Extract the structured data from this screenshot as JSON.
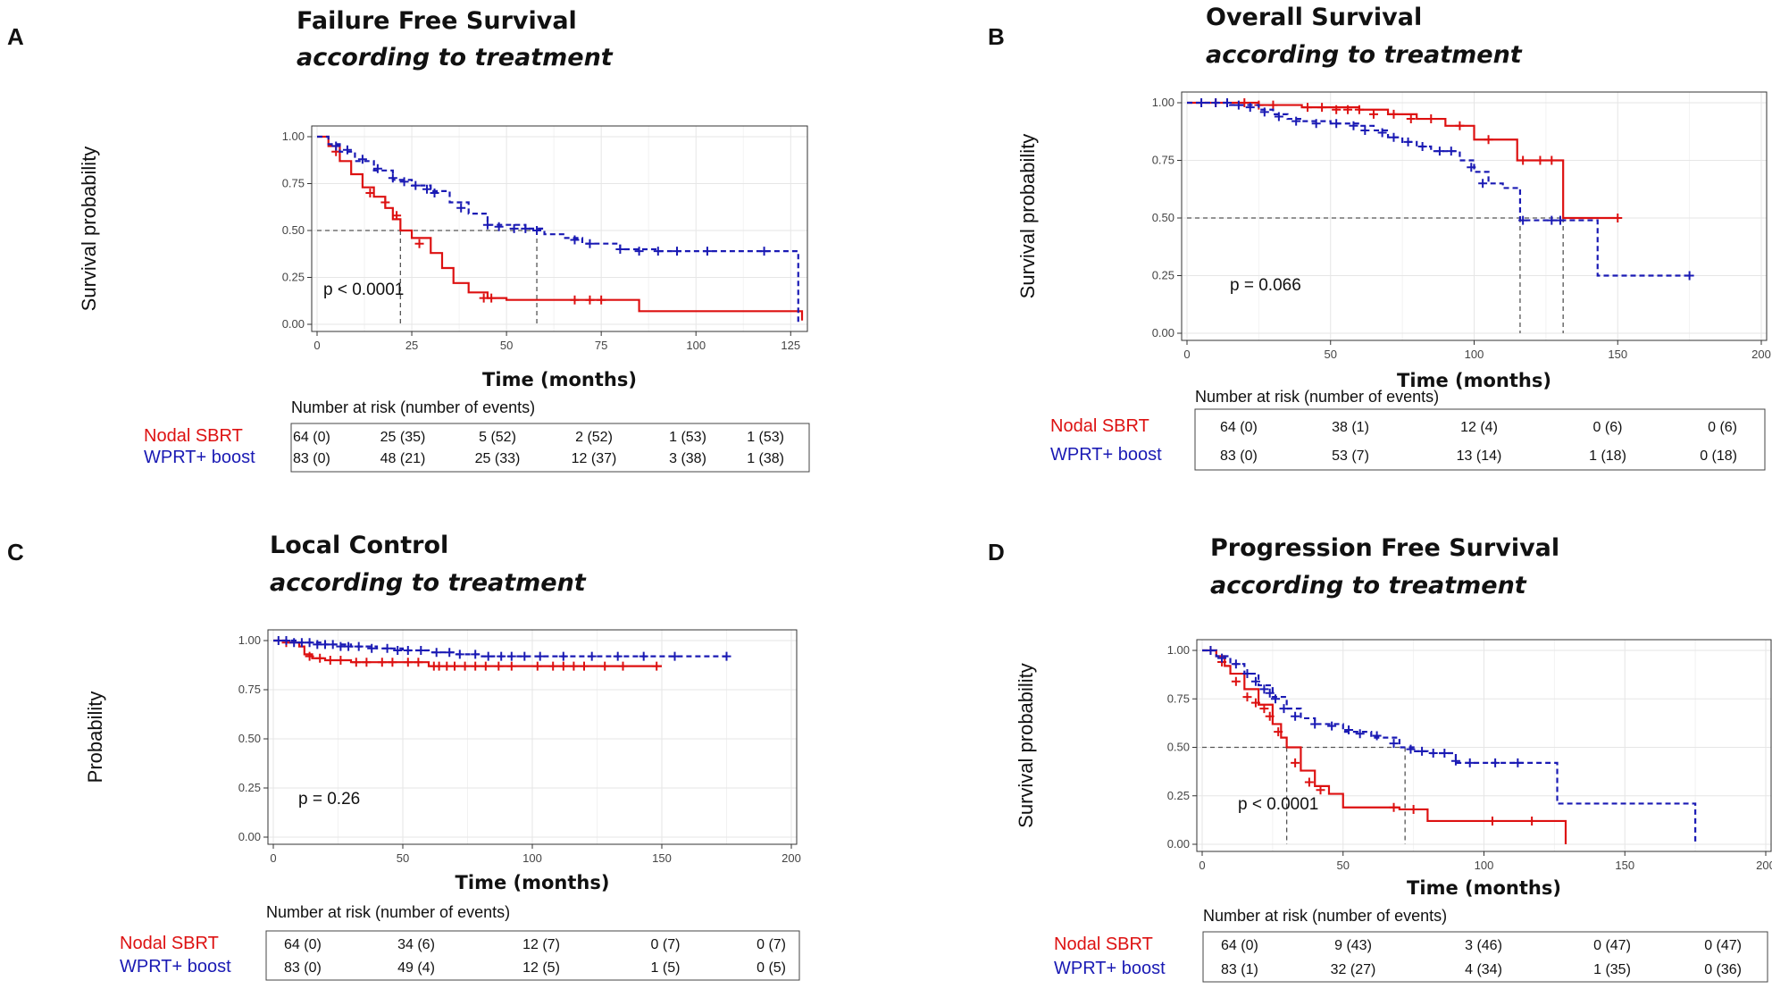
{
  "colors": {
    "nodal": "#dd1111",
    "wprt": "#1a1ab4",
    "grid": "#e6e6e6",
    "ref": "#555555"
  },
  "chart_data": [
    {
      "panel": "A",
      "type": "line",
      "title": "Failure  Free Survival",
      "subtitle": "according to treatment",
      "ylabel": "Survival probability",
      "xlabel": "Time (months)",
      "xlim": [
        0,
        128
      ],
      "ylim": [
        0,
        1
      ],
      "x_ticks": [
        0,
        25,
        50,
        75,
        100,
        125
      ],
      "y_ticks": [
        "0.00",
        "0.25",
        "0.50",
        "0.75",
        "1.00"
      ],
      "p_value": "p < 0.0001",
      "median_lines": [
        22,
        58
      ],
      "series": [
        {
          "name": "Nodal SBRT",
          "style": "solid",
          "x": [
            0,
            3,
            6,
            9,
            12,
            15,
            18,
            20,
            22,
            25,
            30,
            33,
            36,
            40,
            45,
            50,
            85,
            128
          ],
          "y": [
            1,
            0.95,
            0.87,
            0.8,
            0.73,
            0.68,
            0.62,
            0.56,
            0.5,
            0.46,
            0.38,
            0.3,
            0.22,
            0.17,
            0.14,
            0.13,
            0.07,
            0.02
          ],
          "censors_x": [
            5,
            14,
            18,
            21,
            27,
            44,
            46,
            68,
            72,
            75
          ],
          "censors_y": [
            0.92,
            0.7,
            0.65,
            0.58,
            0.43,
            0.14,
            0.14,
            0.13,
            0.13,
            0.13
          ]
        },
        {
          "name": "WPRT+ boost",
          "style": "dashed",
          "x": [
            0,
            3,
            6,
            10,
            15,
            20,
            25,
            30,
            35,
            40,
            45,
            55,
            60,
            65,
            70,
            80,
            90,
            100,
            110,
            120,
            126,
            127
          ],
          "y": [
            1,
            0.96,
            0.92,
            0.87,
            0.82,
            0.77,
            0.74,
            0.71,
            0.65,
            0.59,
            0.53,
            0.51,
            0.48,
            0.46,
            0.43,
            0.4,
            0.39,
            0.39,
            0.39,
            0.39,
            0.39,
            0.0
          ],
          "censors_x": [
            5,
            8,
            12,
            16,
            20,
            23,
            26,
            29,
            31,
            38,
            45,
            48,
            52,
            55,
            58,
            68,
            72,
            80,
            85,
            90,
            95,
            103,
            118
          ],
          "censors_y": [
            0.95,
            0.93,
            0.88,
            0.83,
            0.78,
            0.76,
            0.74,
            0.72,
            0.7,
            0.62,
            0.53,
            0.52,
            0.51,
            0.51,
            0.5,
            0.45,
            0.43,
            0.4,
            0.39,
            0.39,
            0.39,
            0.39,
            0.39
          ]
        }
      ],
      "risk_table": {
        "header": "Number at risk (number of events)",
        "rows": [
          {
            "group": "Nodal SBRT",
            "cells": [
              "64 (0)",
              "25 (35)",
              "5 (52)",
              "2 (52)",
              "1 (53)",
              "1 (53)"
            ]
          },
          {
            "group": "WPRT+ boost",
            "cells": [
              "83 (0)",
              "48 (21)",
              "25 (33)",
              "12 (37)",
              "3 (38)",
              "1 (38)"
            ]
          }
        ]
      }
    },
    {
      "panel": "B",
      "type": "line",
      "title": "Overall Survival",
      "subtitle": "according to treatment",
      "ylabel": "Survival probability",
      "xlabel": "Time (months)",
      "xlim": [
        0,
        200
      ],
      "ylim": [
        0,
        1
      ],
      "x_ticks": [
        0,
        50,
        100,
        150,
        200
      ],
      "y_ticks": [
        "0.00",
        "0.25",
        "0.50",
        "0.75",
        "1.00"
      ],
      "p_value": "p = 0.066",
      "median_lines": [
        116,
        131
      ],
      "series": [
        {
          "name": "Nodal SBRT",
          "style": "solid",
          "x": [
            0,
            25,
            40,
            60,
            70,
            80,
            90,
            100,
            110,
            115,
            120,
            130,
            131,
            150
          ],
          "y": [
            1,
            0.99,
            0.98,
            0.97,
            0.95,
            0.93,
            0.9,
            0.84,
            0.84,
            0.75,
            0.75,
            0.75,
            0.5,
            0.5
          ],
          "censors_x": [
            10,
            20,
            25,
            30,
            42,
            47,
            52,
            56,
            60,
            65,
            72,
            78,
            85,
            95,
            105,
            117,
            123,
            127,
            150
          ],
          "censors_y": [
            1,
            1,
            0.99,
            0.99,
            0.98,
            0.98,
            0.97,
            0.97,
            0.97,
            0.95,
            0.95,
            0.93,
            0.93,
            0.9,
            0.84,
            0.75,
            0.75,
            0.75,
            0.5
          ]
        },
        {
          "name": "WPRT+ boost",
          "style": "dashed",
          "x": [
            0,
            15,
            25,
            30,
            35,
            40,
            50,
            60,
            65,
            70,
            75,
            80,
            85,
            90,
            95,
            100,
            105,
            110,
            116,
            120,
            140,
            143,
            175
          ],
          "y": [
            1,
            0.99,
            0.97,
            0.95,
            0.93,
            0.92,
            0.91,
            0.9,
            0.88,
            0.85,
            0.83,
            0.81,
            0.79,
            0.79,
            0.75,
            0.7,
            0.65,
            0.63,
            0.49,
            0.49,
            0.49,
            0.25,
            0.25
          ],
          "censors_x": [
            5,
            10,
            14,
            18,
            22,
            27,
            32,
            38,
            45,
            52,
            58,
            62,
            68,
            72,
            77,
            82,
            88,
            92,
            99,
            103,
            117,
            127,
            130,
            175
          ],
          "censors_y": [
            1,
            1,
            1,
            0.99,
            0.98,
            0.96,
            0.94,
            0.92,
            0.91,
            0.91,
            0.9,
            0.88,
            0.87,
            0.85,
            0.83,
            0.81,
            0.79,
            0.79,
            0.72,
            0.65,
            0.49,
            0.49,
            0.49,
            0.25
          ]
        }
      ],
      "risk_table": {
        "header": "Number at risk (number of events)",
        "rows": [
          {
            "group": "Nodal SBRT",
            "cells": [
              "64 (0)",
              "38 (1)",
              "12 (4)",
              "0 (6)",
              "0 (6)"
            ]
          },
          {
            "group": "WPRT+ boost",
            "cells": [
              "83 (0)",
              "53 (7)",
              "13 (14)",
              "1 (18)",
              "0 (18)"
            ]
          }
        ]
      }
    },
    {
      "panel": "C",
      "type": "line",
      "title": "Local Control",
      "subtitle": "according to treatment",
      "ylabel": "Probability",
      "xlabel": "Time (months)",
      "xlim": [
        0,
        200
      ],
      "ylim": [
        0,
        1
      ],
      "x_ticks": [
        0,
        50,
        100,
        150,
        200
      ],
      "y_ticks": [
        "0.00",
        "0.25",
        "0.50",
        "0.75",
        "1.00"
      ],
      "p_value": "p = 0.26",
      "median_lines": [],
      "series": [
        {
          "name": "Nodal SBRT",
          "style": "solid",
          "x": [
            0,
            5,
            10,
            12,
            15,
            20,
            30,
            60,
            70,
            100,
            150
          ],
          "y": [
            1,
            0.99,
            0.97,
            0.93,
            0.91,
            0.9,
            0.89,
            0.87,
            0.87,
            0.87,
            0.87
          ],
          "censors_x": [
            5,
            14,
            18,
            22,
            26,
            32,
            36,
            42,
            46,
            52,
            56,
            62,
            64,
            67,
            70,
            74,
            78,
            82,
            87,
            92,
            102,
            108,
            112,
            116,
            120,
            128,
            135,
            148
          ],
          "censors_y": [
            0.99,
            0.92,
            0.91,
            0.9,
            0.9,
            0.89,
            0.89,
            0.89,
            0.89,
            0.89,
            0.89,
            0.87,
            0.87,
            0.87,
            0.87,
            0.87,
            0.87,
            0.87,
            0.87,
            0.87,
            0.87,
            0.87,
            0.87,
            0.87,
            0.87,
            0.87,
            0.87,
            0.87
          ]
        },
        {
          "name": "WPRT+ boost",
          "style": "dashed",
          "x": [
            0,
            10,
            20,
            30,
            40,
            50,
            60,
            70,
            80,
            175
          ],
          "y": [
            1,
            0.99,
            0.98,
            0.97,
            0.96,
            0.95,
            0.94,
            0.93,
            0.92,
            0.92
          ],
          "censors_x": [
            2,
            5,
            8,
            11,
            14,
            17,
            20,
            23,
            26,
            29,
            33,
            38,
            44,
            48,
            52,
            57,
            63,
            68,
            72,
            78,
            83,
            88,
            92,
            97,
            103,
            112,
            123,
            133,
            143,
            155,
            175
          ],
          "censors_y": [
            1,
            1,
            0.99,
            0.99,
            0.99,
            0.98,
            0.98,
            0.98,
            0.97,
            0.97,
            0.97,
            0.96,
            0.96,
            0.95,
            0.95,
            0.95,
            0.94,
            0.94,
            0.93,
            0.93,
            0.92,
            0.92,
            0.92,
            0.92,
            0.92,
            0.92,
            0.92,
            0.92,
            0.92,
            0.92,
            0.92
          ]
        }
      ],
      "risk_table": {
        "header": "Number at risk (number of events)",
        "rows": [
          {
            "group": "Nodal SBRT",
            "cells": [
              "64 (0)",
              "34 (6)",
              "12 (7)",
              "0 (7)",
              "0 (7)"
            ]
          },
          {
            "group": "WPRT+ boost",
            "cells": [
              "83 (0)",
              "49 (4)",
              "12 (5)",
              "1 (5)",
              "0 (5)"
            ]
          }
        ]
      }
    },
    {
      "panel": "D",
      "type": "line",
      "title": "Progression  Free Survival",
      "subtitle": "according to treatment",
      "ylabel": "Survival probability",
      "xlabel": "Time (months)",
      "xlim": [
        0,
        200
      ],
      "ylim": [
        0,
        1
      ],
      "x_ticks": [
        0,
        50,
        100,
        150,
        200
      ],
      "y_ticks": [
        "0.00",
        "0.25",
        "0.50",
        "0.75",
        "1.00"
      ],
      "p_value": "p < 0.0001",
      "median_lines": [
        30,
        72
      ],
      "series": [
        {
          "name": "Nodal SBRT",
          "style": "solid",
          "x": [
            0,
            5,
            8,
            10,
            15,
            20,
            25,
            28,
            30,
            35,
            40,
            45,
            50,
            60,
            70,
            80,
            100,
            128,
            129
          ],
          "y": [
            1,
            0.97,
            0.92,
            0.88,
            0.8,
            0.72,
            0.62,
            0.55,
            0.5,
            0.38,
            0.3,
            0.26,
            0.19,
            0.19,
            0.18,
            0.12,
            0.12,
            0.12,
            0.0
          ],
          "censors_x": [
            3,
            7,
            12,
            16,
            19,
            22,
            24,
            27,
            33,
            38,
            42,
            68,
            75,
            103,
            117
          ],
          "censors_y": [
            1,
            0.94,
            0.84,
            0.76,
            0.73,
            0.7,
            0.66,
            0.58,
            0.42,
            0.32,
            0.28,
            0.19,
            0.18,
            0.12,
            0.12
          ]
        },
        {
          "name": "WPRT+ boost",
          "style": "dashed",
          "x": [
            0,
            5,
            10,
            15,
            20,
            25,
            30,
            35,
            40,
            50,
            60,
            70,
            75,
            80,
            90,
            110,
            125,
            126,
            140,
            175
          ],
          "y": [
            1,
            0.97,
            0.93,
            0.88,
            0.82,
            0.76,
            0.7,
            0.65,
            0.62,
            0.58,
            0.55,
            0.5,
            0.48,
            0.47,
            0.42,
            0.42,
            0.42,
            0.21,
            0.21,
            0.0
          ],
          "censors_x": [
            3,
            7,
            12,
            16,
            19,
            22,
            24,
            26,
            29,
            33,
            40,
            46,
            52,
            56,
            62,
            68,
            74,
            78,
            82,
            86,
            90,
            95,
            104,
            112
          ],
          "censors_y": [
            1,
            0.96,
            0.93,
            0.88,
            0.84,
            0.8,
            0.78,
            0.75,
            0.7,
            0.66,
            0.62,
            0.61,
            0.59,
            0.57,
            0.56,
            0.52,
            0.49,
            0.48,
            0.47,
            0.47,
            0.43,
            0.42,
            0.42,
            0.42
          ]
        }
      ],
      "risk_table": {
        "header": "Number at risk (number of events)",
        "rows": [
          {
            "group": "Nodal SBRT",
            "cells": [
              "64 (0)",
              "9 (43)",
              "3 (46)",
              "0 (47)",
              "0 (47)"
            ]
          },
          {
            "group": "WPRT+ boost",
            "cells": [
              "83 (1)",
              "32 (27)",
              "4 (34)",
              "1 (35)",
              "0 (36)"
            ]
          }
        ]
      }
    }
  ]
}
